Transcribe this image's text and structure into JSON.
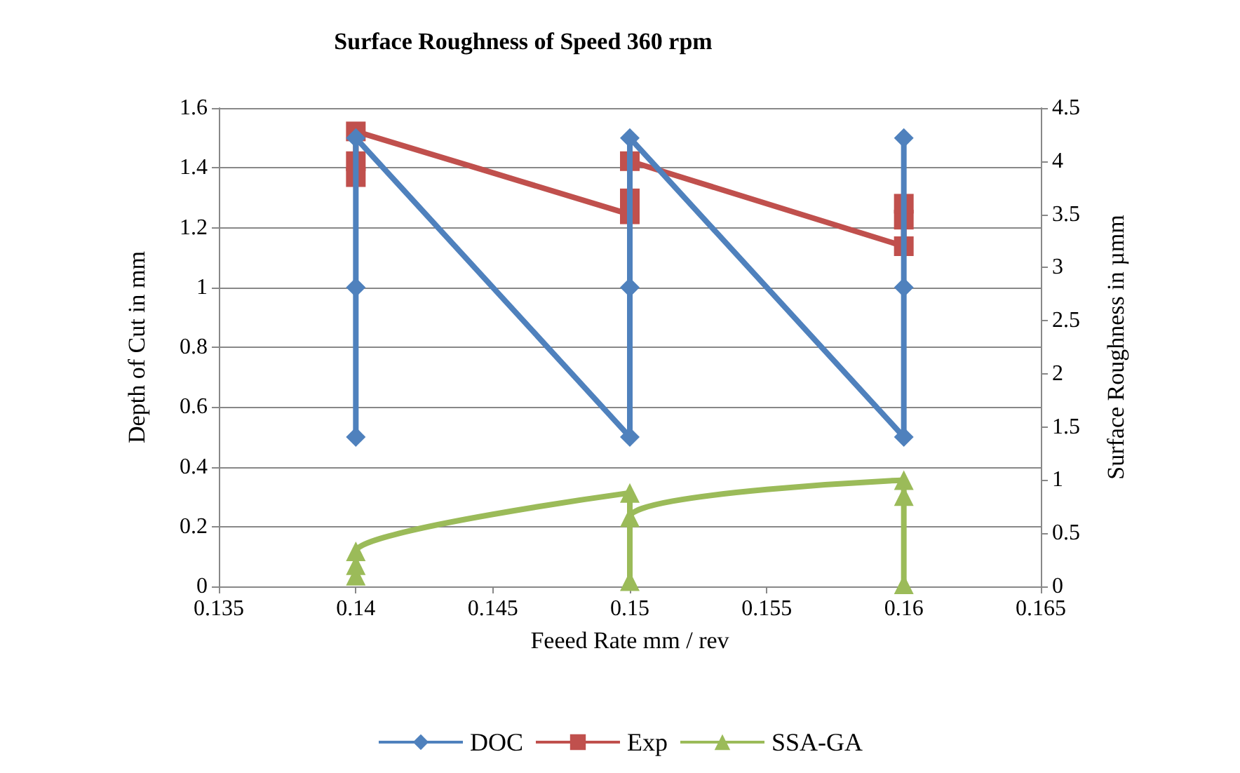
{
  "chart_data": {
    "type": "line",
    "title": "Surface Roughness of Speed 360 rpm",
    "xlabel": "Feeed Rate mm / rev",
    "ylabel": "Depth of Cut in mm",
    "y2label": "Surface Roughness in µmm",
    "xlim": [
      0.135,
      0.165
    ],
    "xticks": [
      0.135,
      0.14,
      0.145,
      0.15,
      0.155,
      0.16,
      0.165
    ],
    "ylim": [
      0,
      1.6
    ],
    "yticks": [
      0,
      0.2,
      0.4,
      0.6,
      0.8,
      1,
      1.2,
      1.4,
      1.6
    ],
    "y2lim": [
      0,
      4.5
    ],
    "y2ticks": [
      0,
      0.5,
      1,
      1.5,
      2,
      2.5,
      3,
      3.5,
      4,
      4.5
    ],
    "grid": "y",
    "legend": "bottom",
    "series": [
      {
        "name": "DOC",
        "color": "#4f81bd",
        "marker": "diamond",
        "x": [
          0.14,
          0.14,
          0.14,
          0.15,
          0.15,
          0.15,
          0.16,
          0.16,
          0.16
        ],
        "values": [
          0.5,
          1,
          1.5,
          0.5,
          1,
          1.5,
          0.5,
          1,
          1.5
        ]
      },
      {
        "name": "Exp",
        "color": "#c0504d",
        "marker": "square",
        "axis": "y2",
        "x": [
          0.14,
          0.14,
          0.14,
          0.15,
          0.15,
          0.15,
          0.16,
          0.16,
          0.16
        ],
        "values": [
          3.85,
          4.0,
          4.28,
          3.5,
          3.65,
          4.0,
          3.2,
          3.45,
          3.6
        ]
      },
      {
        "name": "SSA-GA",
        "color": "#9bbb59",
        "marker": "triangle",
        "axis": "y2",
        "x": [
          0.14,
          0.14,
          0.14,
          0.15,
          0.15,
          0.15,
          0.16,
          0.16,
          0.16
        ],
        "values": [
          0.1,
          0.2,
          0.33,
          0.88,
          0.05,
          0.65,
          1.0,
          0.02,
          0.85
        ]
      }
    ]
  }
}
